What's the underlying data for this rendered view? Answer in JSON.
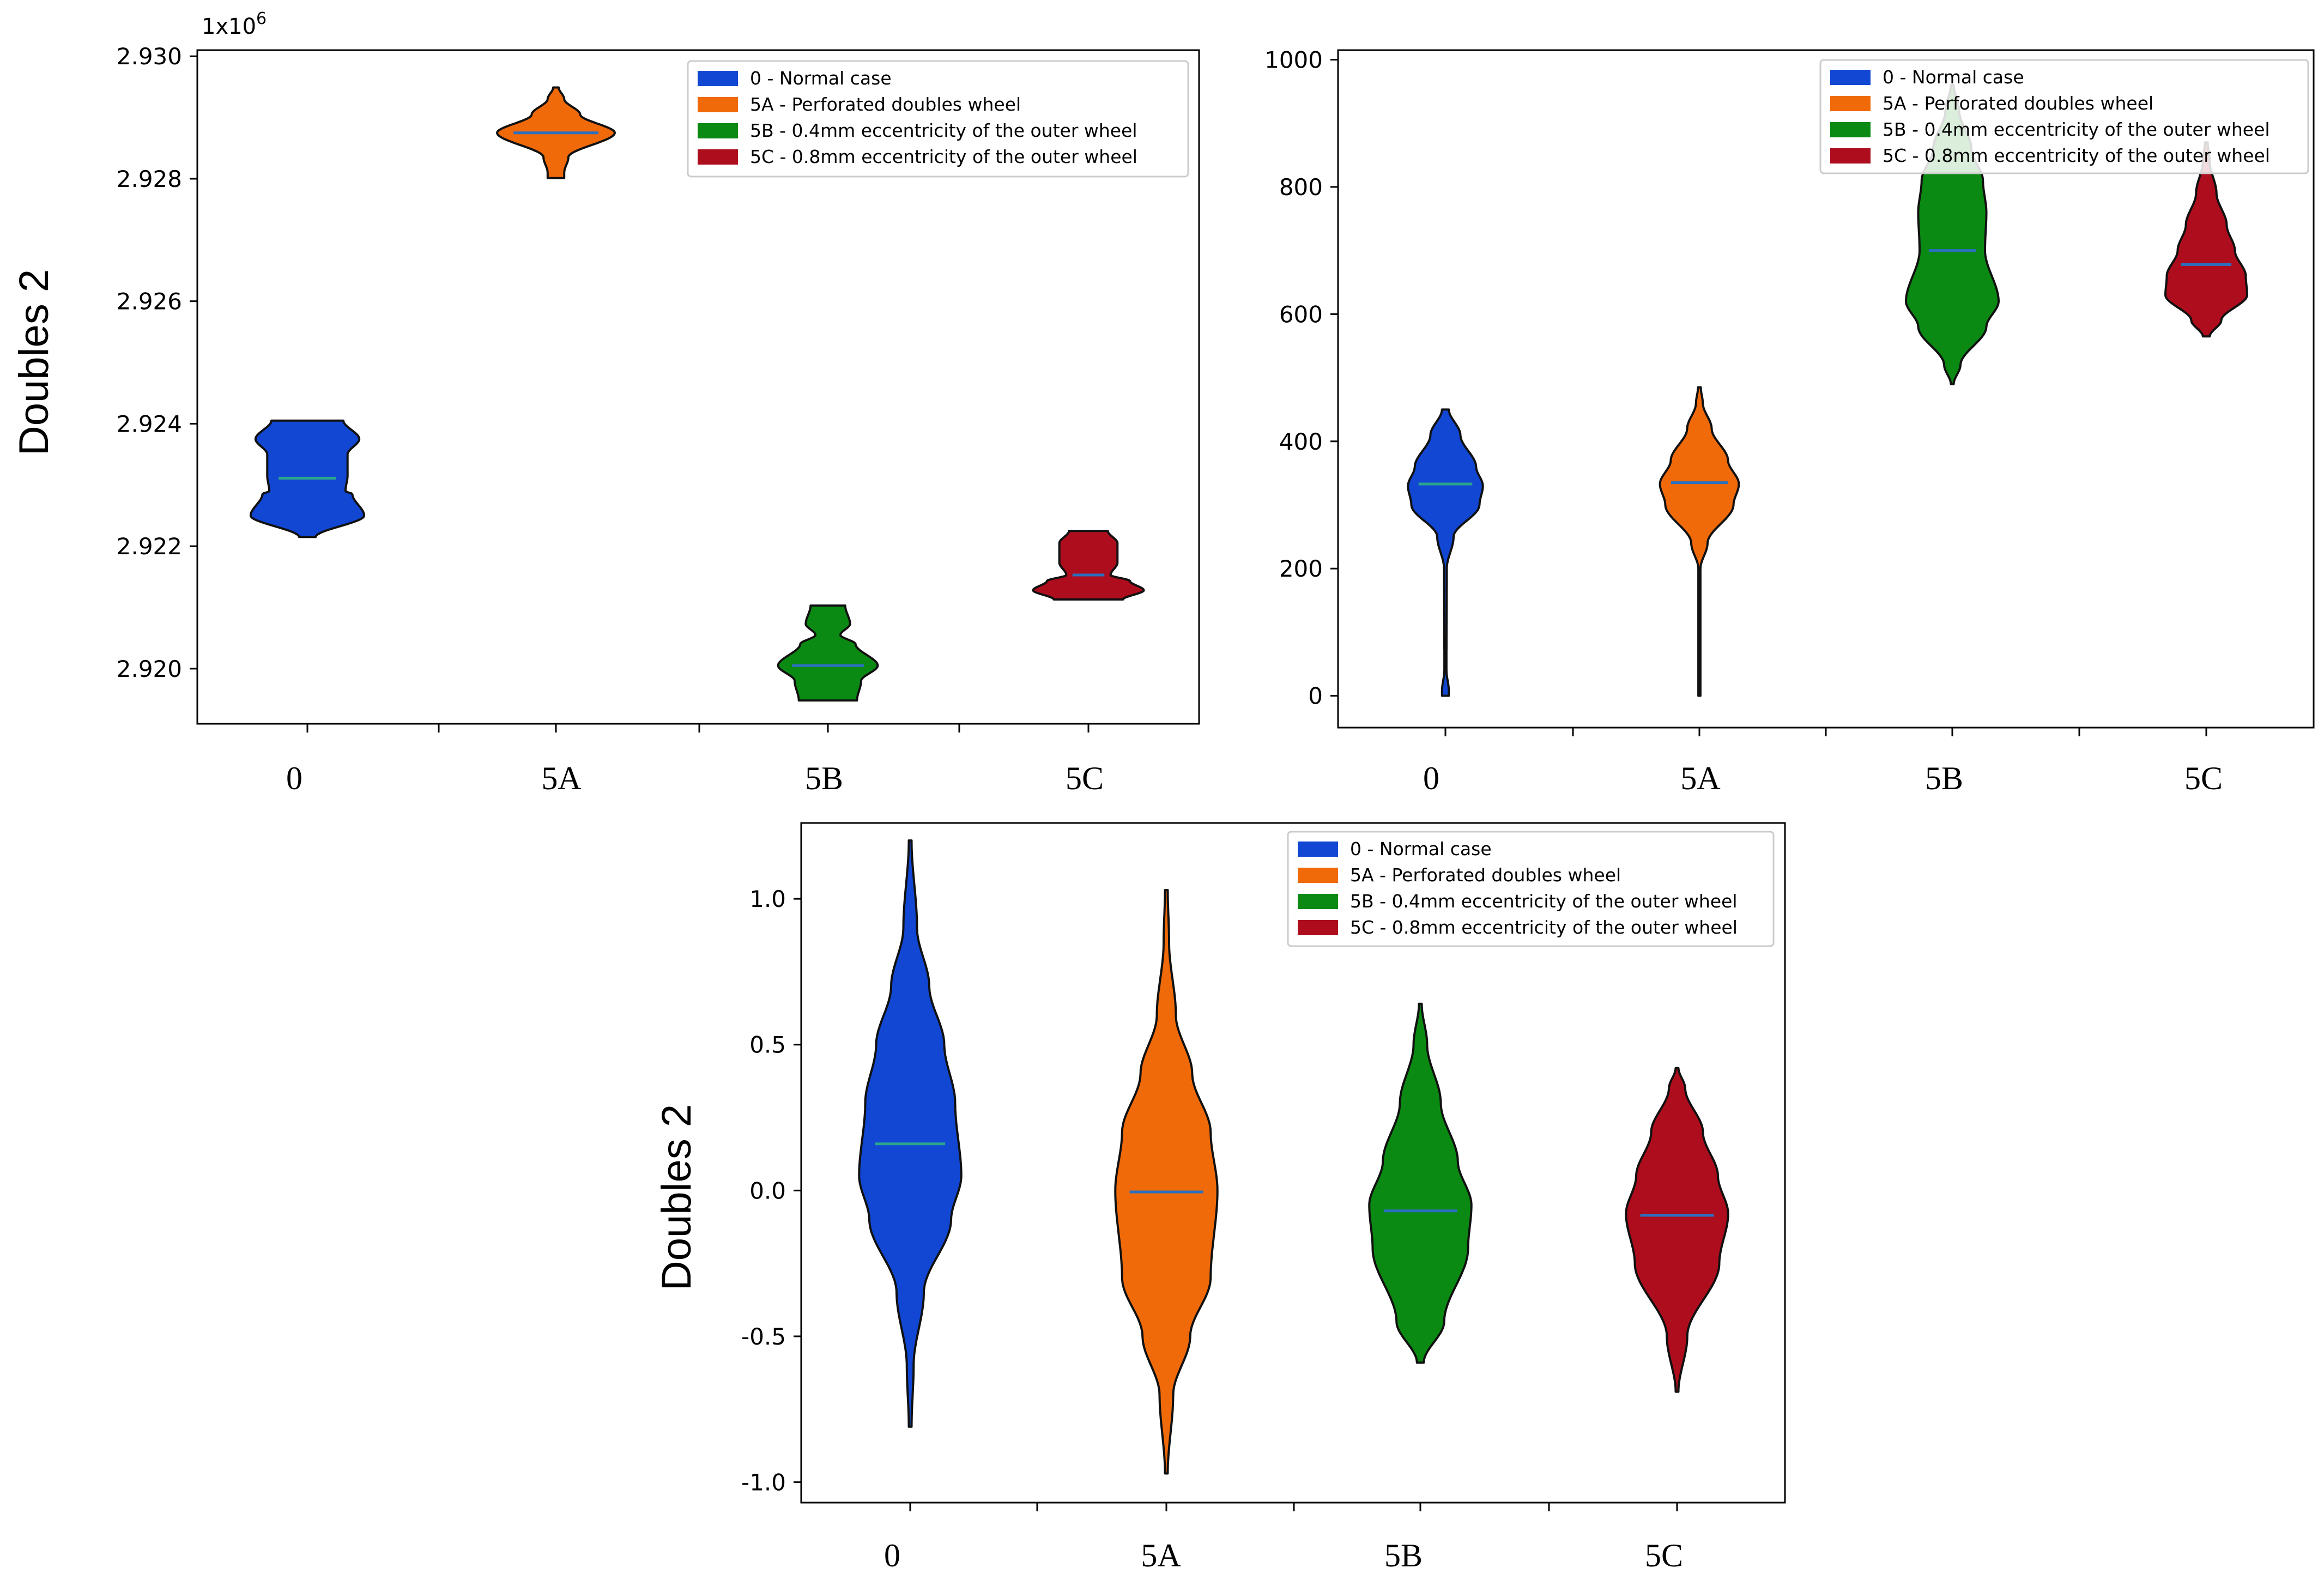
{
  "figure": {
    "ylabel_left": "Doubles 2",
    "ylabel_bottom": "Doubles 2"
  },
  "legend": [
    {
      "label": "0 - Normal case",
      "color": "#1147d3"
    },
    {
      "label": "5A - Perforated doubles wheel",
      "color": "#f06a0a"
    },
    {
      "label": "5B - 0.4mm eccentricity of the outer wheel",
      "color": "#0a8a12"
    },
    {
      "label": "5C - 0.8mm eccentricity of the outer wheel",
      "color": "#ad0d1d"
    }
  ],
  "chart_data": [
    {
      "type": "violin",
      "position": "top-left",
      "categories": [
        "0",
        "5A",
        "5B",
        "5C"
      ],
      "ylabel": "Doubles 2",
      "y_multiplier": "1x10",
      "y_exponent": "6",
      "ylim": [
        2.9191,
        2.9301
      ],
      "yticks": [
        "2.930",
        "2.928",
        "2.926",
        "2.924",
        "2.922",
        "2.920"
      ],
      "ytick_values": [
        2.93,
        2.928,
        2.926,
        2.924,
        2.922,
        2.92
      ],
      "series": [
        {
          "name": "0",
          "min": 2.92215,
          "max": 2.92405,
          "median": 2.92311,
          "profile": [
            [
              2.92215,
              0.12
            ],
            [
              2.9225,
              0.82
            ],
            [
              2.92285,
              0.65
            ],
            [
              2.9229,
              0.55
            ],
            [
              2.92315,
              0.58
            ],
            [
              2.9235,
              0.58
            ],
            [
              2.92375,
              0.75
            ],
            [
              2.92405,
              0.52
            ]
          ]
        },
        {
          "name": "5A",
          "min": 2.92801,
          "max": 2.92949,
          "median": 2.92875,
          "profile": [
            [
              2.92801,
              0.12
            ],
            [
              2.9281,
              0.12
            ],
            [
              2.92835,
              0.18
            ],
            [
              2.92875,
              0.85
            ],
            [
              2.92905,
              0.35
            ],
            [
              2.9293,
              0.12
            ],
            [
              2.92949,
              0.04
            ]
          ]
        },
        {
          "name": "5B",
          "min": 2.91948,
          "max": 2.92103,
          "median": 2.92005,
          "profile": [
            [
              2.91948,
              0.42
            ],
            [
              2.9198,
              0.48
            ],
            [
              2.92005,
              0.72
            ],
            [
              2.9204,
              0.4
            ],
            [
              2.92055,
              0.18
            ],
            [
              2.92073,
              0.32
            ],
            [
              2.92103,
              0.25
            ]
          ]
        },
        {
          "name": "5C",
          "min": 2.92113,
          "max": 2.92225,
          "median": 2.92153,
          "profile": [
            [
              2.92113,
              0.5
            ],
            [
              2.92128,
              0.8
            ],
            [
              2.92143,
              0.6
            ],
            [
              2.92153,
              0.32
            ],
            [
              2.92173,
              0.42
            ],
            [
              2.92205,
              0.42
            ],
            [
              2.92225,
              0.28
            ]
          ]
        }
      ]
    },
    {
      "type": "violin",
      "position": "top-right",
      "categories": [
        "0",
        "5A",
        "5B",
        "5C"
      ],
      "ylabel": "",
      "ylim": [
        -50,
        1015
      ],
      "yticks": [
        "0",
        "200",
        "400",
        "600",
        "800",
        "1000"
      ],
      "ytick_values": [
        0,
        200,
        400,
        600,
        800,
        1000
      ],
      "series": [
        {
          "name": "0",
          "min": 0,
          "max": 450,
          "median": 333,
          "profile": [
            [
              0,
              0.05
            ],
            [
              8,
              0.05
            ],
            [
              40,
              0.015
            ],
            [
              200,
              0.02
            ],
            [
              250,
              0.12
            ],
            [
              300,
              0.5
            ],
            [
              330,
              0.55
            ],
            [
              360,
              0.45
            ],
            [
              410,
              0.22
            ],
            [
              450,
              0.05
            ]
          ]
        },
        {
          "name": "5A",
          "min": 0,
          "max": 485,
          "median": 335,
          "profile": [
            [
              0,
              0.015
            ],
            [
              200,
              0.015
            ],
            [
              240,
              0.12
            ],
            [
              300,
              0.5
            ],
            [
              333,
              0.58
            ],
            [
              370,
              0.42
            ],
            [
              420,
              0.18
            ],
            [
              460,
              0.05
            ],
            [
              485,
              0.02
            ]
          ]
        },
        {
          "name": "5B",
          "min": 490,
          "max": 960,
          "median": 700,
          "profile": [
            [
              490,
              0.02
            ],
            [
              520,
              0.12
            ],
            [
              580,
              0.5
            ],
            [
              620,
              0.68
            ],
            [
              700,
              0.48
            ],
            [
              760,
              0.5
            ],
            [
              810,
              0.45
            ],
            [
              860,
              0.28
            ],
            [
              920,
              0.1
            ],
            [
              960,
              0.02
            ]
          ]
        },
        {
          "name": "5C",
          "min": 565,
          "max": 870,
          "median": 678,
          "profile": [
            [
              565,
              0.05
            ],
            [
              590,
              0.22
            ],
            [
              630,
              0.6
            ],
            [
              660,
              0.58
            ],
            [
              700,
              0.42
            ],
            [
              740,
              0.3
            ],
            [
              790,
              0.15
            ],
            [
              840,
              0.05
            ],
            [
              870,
              0.02
            ]
          ]
        }
      ]
    },
    {
      "type": "violin",
      "position": "bottom",
      "categories": [
        "0",
        "5A",
        "5B",
        "5C"
      ],
      "ylabel": "Doubles 2",
      "ylim": [
        -1.07,
        1.26
      ],
      "yticks": [
        "1.0",
        "0.5",
        "0.0",
        "-0.5",
        "-1.0"
      ],
      "ytick_values": [
        1.0,
        0.5,
        0.0,
        -0.5,
        -1.0
      ],
      "series": [
        {
          "name": "0",
          "min": -0.81,
          "max": 1.2,
          "median": 0.16,
          "profile": [
            [
              -0.81,
              0.02
            ],
            [
              -0.6,
              0.05
            ],
            [
              -0.35,
              0.2
            ],
            [
              -0.1,
              0.6
            ],
            [
              0.05,
              0.75
            ],
            [
              0.3,
              0.66
            ],
            [
              0.5,
              0.5
            ],
            [
              0.7,
              0.28
            ],
            [
              0.9,
              0.1
            ],
            [
              1.2,
              0.02
            ]
          ]
        },
        {
          "name": "5A",
          "min": -0.97,
          "max": 1.03,
          "median": -0.005,
          "profile": [
            [
              -0.97,
              0.02
            ],
            [
              -0.7,
              0.1
            ],
            [
              -0.5,
              0.35
            ],
            [
              -0.3,
              0.65
            ],
            [
              0.0,
              0.75
            ],
            [
              0.2,
              0.65
            ],
            [
              0.4,
              0.38
            ],
            [
              0.6,
              0.14
            ],
            [
              0.85,
              0.04
            ],
            [
              1.03,
              0.02
            ]
          ]
        },
        {
          "name": "5B",
          "min": -0.59,
          "max": 0.64,
          "median": -0.07,
          "profile": [
            [
              -0.59,
              0.05
            ],
            [
              -0.45,
              0.35
            ],
            [
              -0.2,
              0.7
            ],
            [
              -0.05,
              0.75
            ],
            [
              0.1,
              0.55
            ],
            [
              0.3,
              0.3
            ],
            [
              0.5,
              0.1
            ],
            [
              0.64,
              0.02
            ]
          ]
        },
        {
          "name": "5C",
          "min": -0.69,
          "max": 0.42,
          "median": -0.085,
          "profile": [
            [
              -0.69,
              0.02
            ],
            [
              -0.5,
              0.15
            ],
            [
              -0.25,
              0.62
            ],
            [
              -0.08,
              0.75
            ],
            [
              0.05,
              0.6
            ],
            [
              0.2,
              0.38
            ],
            [
              0.35,
              0.12
            ],
            [
              0.42,
              0.02
            ]
          ]
        }
      ]
    }
  ]
}
